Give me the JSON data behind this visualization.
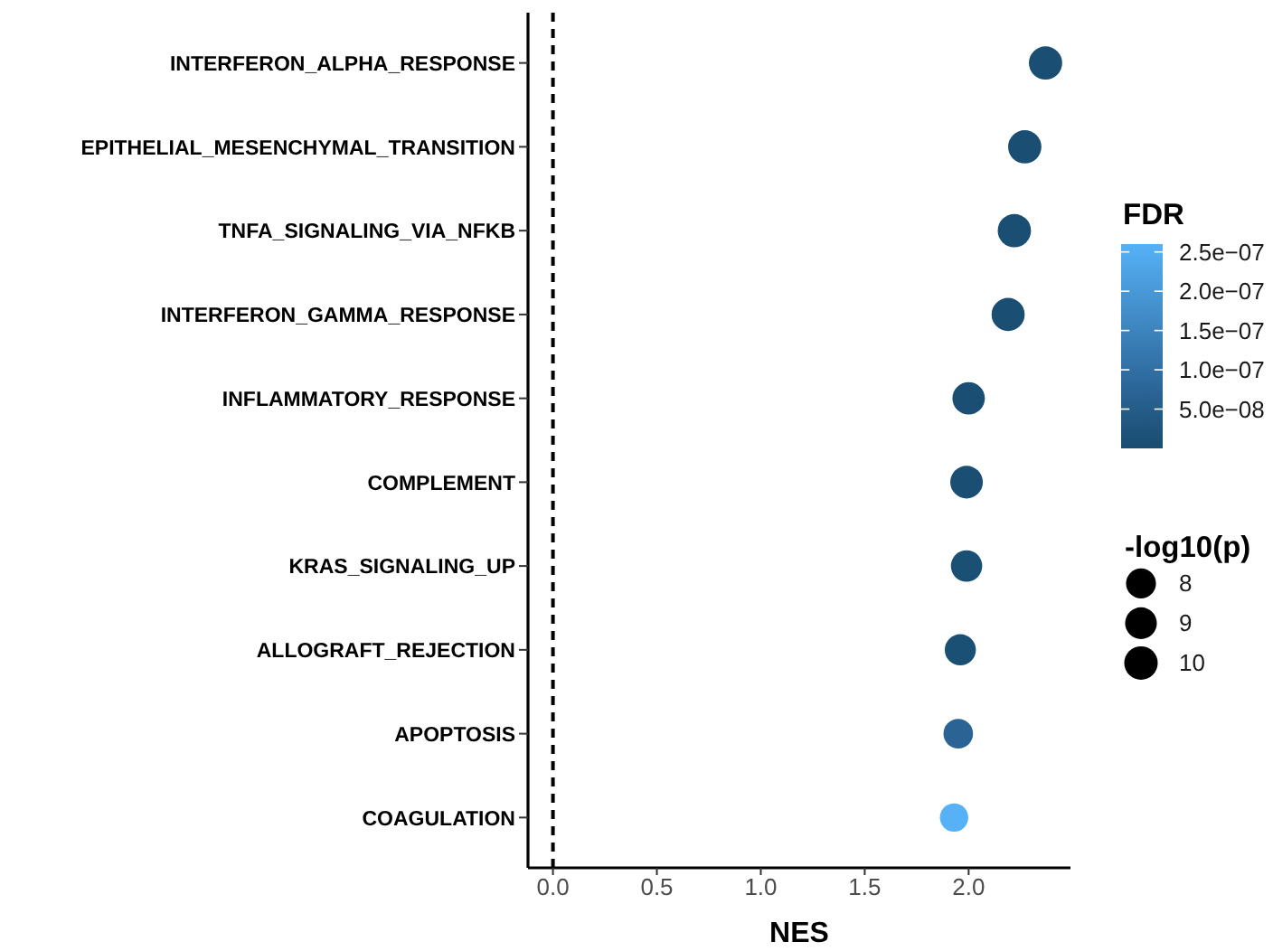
{
  "chart_data": {
    "type": "bubble",
    "orientation": "horizontal",
    "categories": [
      "INTERFERON_ALPHA_RESPONSE",
      "EPITHELIAL_MESENCHYMAL_TRANSITION",
      "TNFA_SIGNALING_VIA_NFKB",
      "INTERFERON_GAMMA_RESPONSE",
      "INFLAMMATORY_RESPONSE",
      "COMPLEMENT",
      "KRAS_SIGNALING_UP",
      "ALLOGRAFT_REJECTION",
      "APOPTOSIS",
      "COAGULATION"
    ],
    "values": [
      2.37,
      2.27,
      2.22,
      2.19,
      2.0,
      1.99,
      1.99,
      1.96,
      1.95,
      1.93
    ],
    "sizes": [
      9.9,
      9.9,
      9.9,
      9.8,
      9.4,
      9.5,
      8.8,
      8.7,
      7.8,
      7.2
    ],
    "size_legend": [
      8,
      9,
      10
    ],
    "cvalues": [
      0,
      0,
      0,
      0,
      0,
      0,
      1e-08,
      1e-08,
      7e-08,
      2.6e-07
    ],
    "colors": [
      "#1a4e72",
      "#1a4e72",
      "#1a4e72",
      "#1a4e72",
      "#1a4e72",
      "#1a4e72",
      "#1b5075",
      "#1b5075",
      "#2a6394",
      "#56b1f7"
    ],
    "clim": [
      0,
      2.6e-07
    ],
    "cticks": [
      {
        "value": 5e-08,
        "label": "5.0e−08"
      },
      {
        "value": 1e-07,
        "label": "1.0e−07"
      },
      {
        "value": 1.5e-07,
        "label": "1.5e−07"
      },
      {
        "value": 2e-07,
        "label": "2.0e−07"
      },
      {
        "value": 2.5e-07,
        "label": "2.5e−07"
      }
    ],
    "clabel": "FDR",
    "legend_title": "-log10(p)",
    "xlabel": "NES",
    "xlim": [
      -0.12,
      2.49
    ],
    "xticks": [
      {
        "value": 0,
        "label": "0.0"
      },
      0.5,
      {
        "value": 1,
        "label": "1.0"
      },
      1.5,
      {
        "value": 2,
        "label": "2.0"
      }
    ],
    "ref_lines": [
      {
        "axis": "x",
        "value": 0,
        "color": "#000000",
        "line_style": "dashed"
      }
    ]
  }
}
